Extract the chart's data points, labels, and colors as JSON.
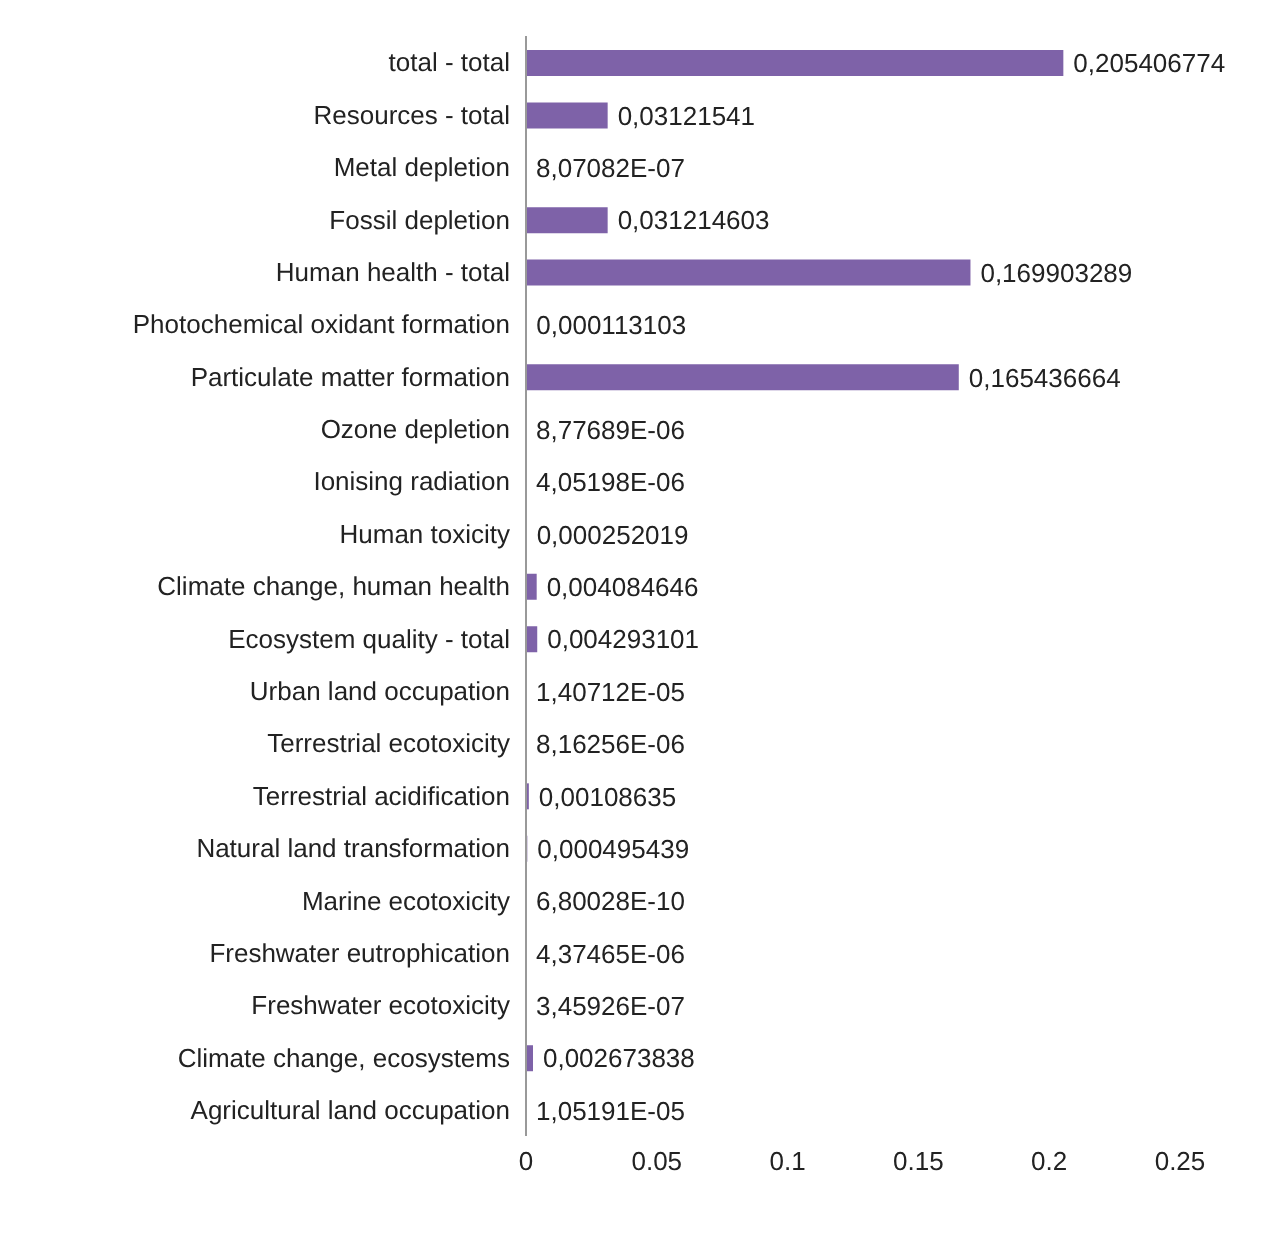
{
  "chart_data": {
    "type": "bar",
    "orientation": "horizontal",
    "categories": [
      "total - total",
      "Resources - total",
      "Metal depletion",
      "Fossil depletion",
      "Human health - total",
      "Photochemical oxidant formation",
      "Particulate matter formation",
      "Ozone depletion",
      "Ionising radiation",
      "Human toxicity",
      "Climate change, human health",
      "Ecosystem quality - total",
      "Urban land occupation",
      "Terrestrial ecotoxicity",
      "Terrestrial acidification",
      "Natural land transformation",
      "Marine ecotoxicity",
      "Freshwater eutrophication",
      "Freshwater ecotoxicity",
      "Climate change, ecosystems",
      "Agricultural land occupation"
    ],
    "values": [
      0.205406774,
      0.03121541,
      8.07082e-07,
      0.031214603,
      0.169903289,
      0.000113103,
      0.165436664,
      8.77689e-06,
      4.05198e-06,
      0.000252019,
      0.004084646,
      0.004293101,
      1.40712e-05,
      8.16256e-06,
      0.00108635,
      0.000495439,
      6.80028e-10,
      4.37465e-06,
      3.45926e-07,
      0.002673838,
      1.05191e-05
    ],
    "value_labels": [
      "0,205406774",
      "0,03121541",
      "8,07082E-07",
      "0,031214603",
      "0,169903289",
      "0,000113103",
      "0,165436664",
      "8,77689E-06",
      "4,05198E-06",
      "0,000252019",
      "0,004084646",
      "0,004293101",
      "1,40712E-05",
      "8,16256E-06",
      "0,00108635",
      "0,000495439",
      "6,80028E-10",
      "4,37465E-06",
      "3,45926E-07",
      "0,002673838",
      "1,05191E-05"
    ],
    "color": "#7e62a8",
    "xlim": [
      0,
      0.25
    ],
    "xticks": [
      0,
      0.05,
      0.1,
      0.15,
      0.2,
      0.25
    ],
    "grid": false,
    "legend": false
  }
}
